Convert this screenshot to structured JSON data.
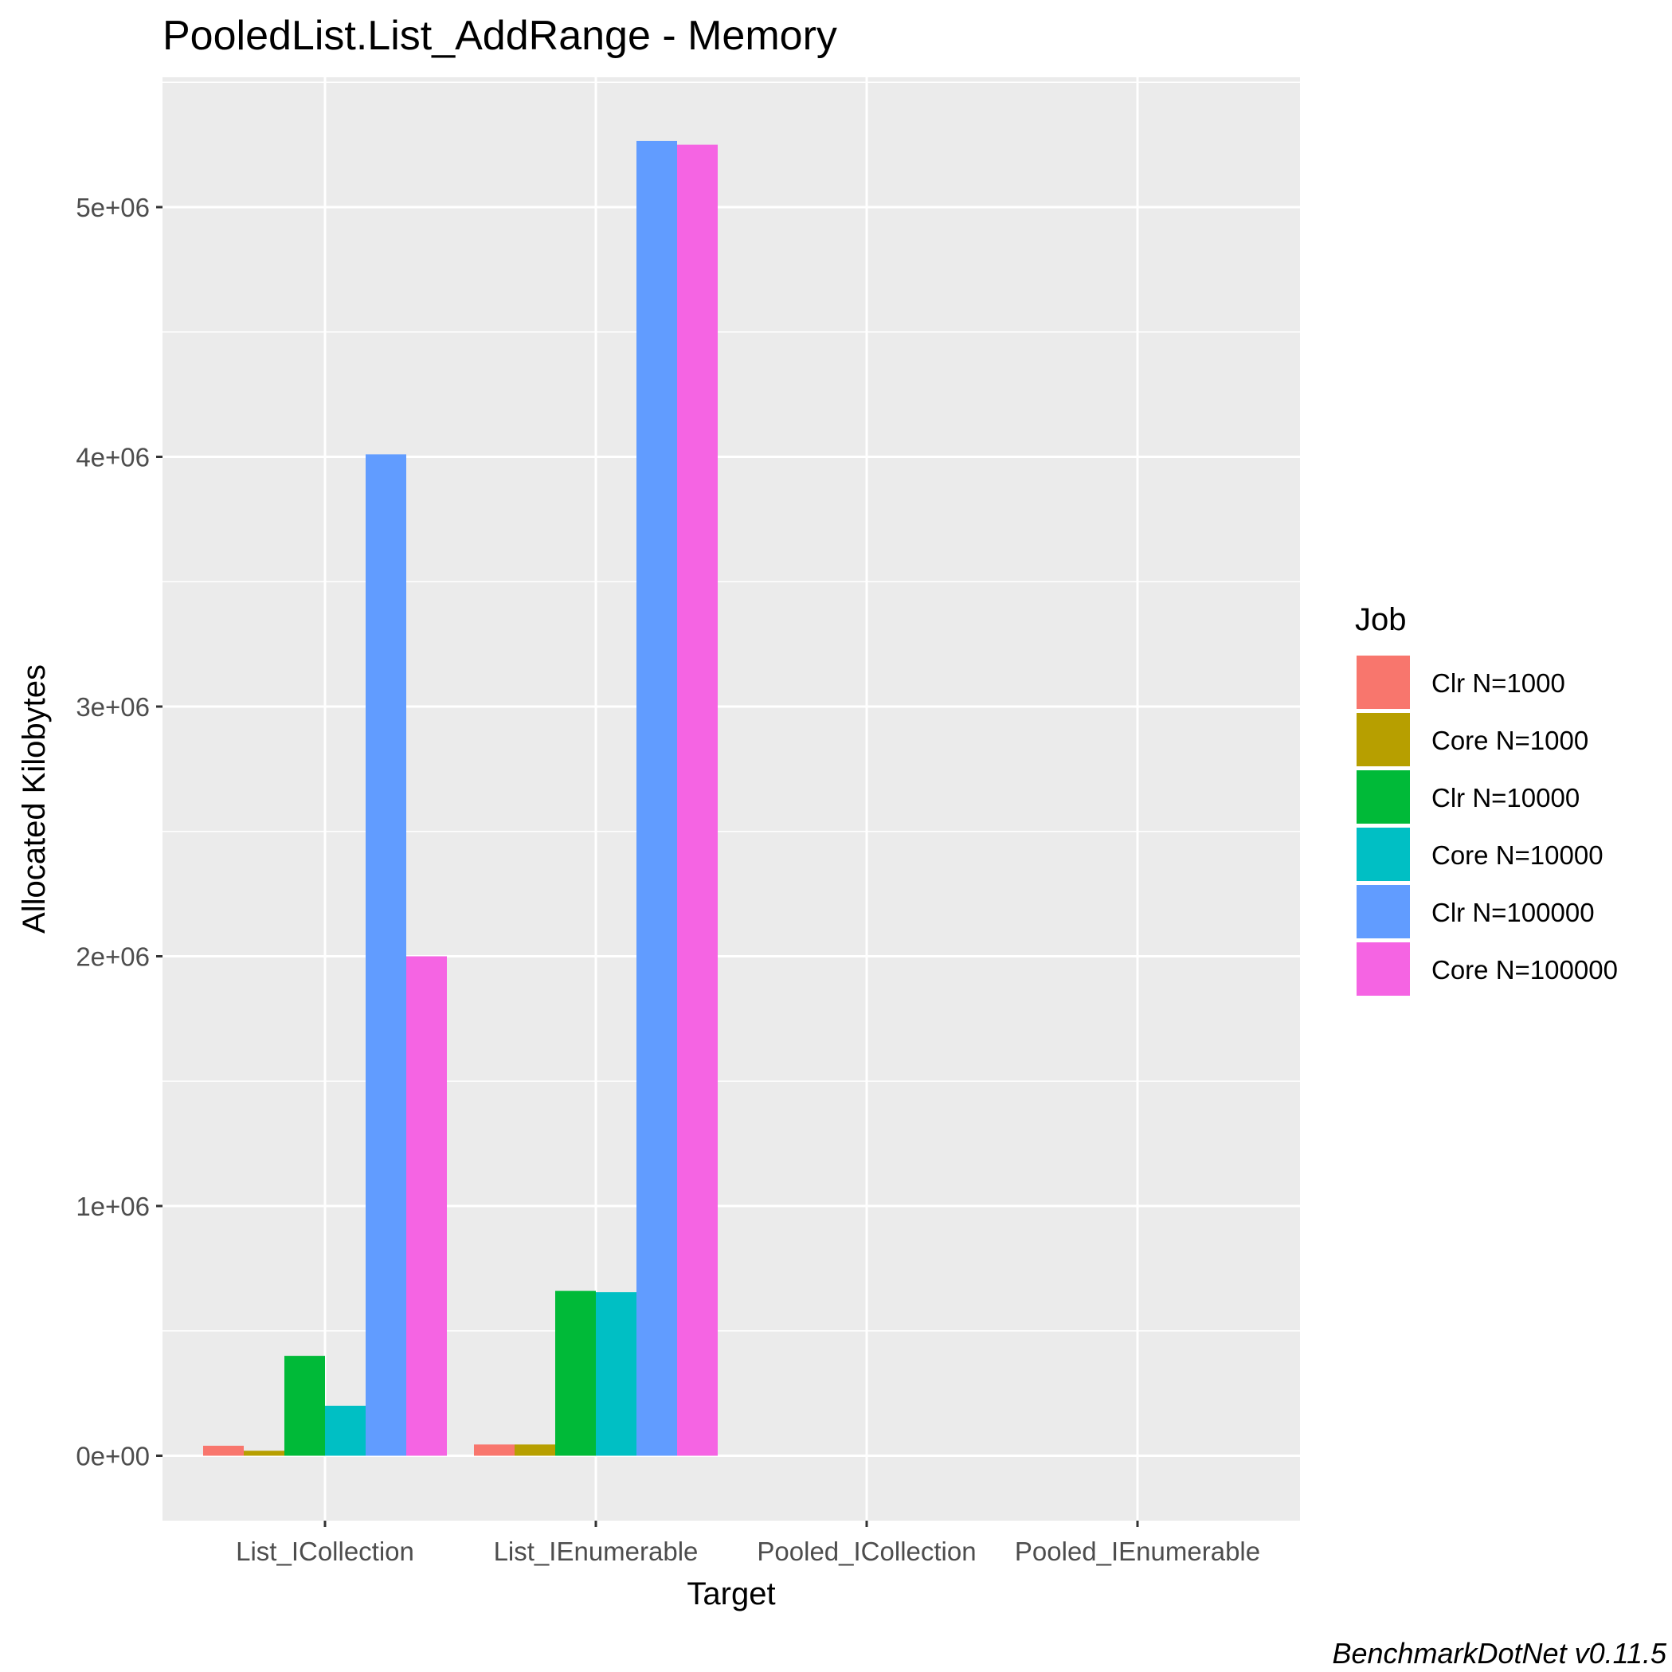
{
  "chart_data": {
    "type": "bar",
    "title": "PooledList.List_AddRange - Memory",
    "xlabel": "Target",
    "ylabel": "Allocated  Kilobytes",
    "caption": "BenchmarkDotNet v0.11.5",
    "categories": [
      "List_ICollection",
      "List_IEnumerable",
      "Pooled_ICollection",
      "Pooled_IEnumerable"
    ],
    "y_ticks": [
      {
        "value": 0,
        "label": "0e+00"
      },
      {
        "value": 1000000,
        "label": "1e+06"
      },
      {
        "value": 2000000,
        "label": "2e+06"
      },
      {
        "value": 3000000,
        "label": "3e+06"
      },
      {
        "value": 4000000,
        "label": "4e+06"
      },
      {
        "value": 5000000,
        "label": "5e+06"
      }
    ],
    "ylim": [
      -260000,
      5520000
    ],
    "grid": true,
    "legend": {
      "title": "Job",
      "position": "right"
    },
    "series": [
      {
        "name": "Clr N=1000",
        "color": "#F8766D",
        "values": [
          40000,
          45000,
          0,
          0
        ]
      },
      {
        "name": "Core N=1000",
        "color": "#B79F00",
        "values": [
          20000,
          45000,
          0,
          0
        ]
      },
      {
        "name": "Clr N=10000",
        "color": "#00BA38",
        "values": [
          400000,
          660000,
          0,
          0
        ]
      },
      {
        "name": "Core N=10000",
        "color": "#00BFC4",
        "values": [
          200000,
          655000,
          0,
          0
        ]
      },
      {
        "name": "Clr N=100000",
        "color": "#619CFF",
        "values": [
          4010000,
          5265000,
          0,
          0
        ]
      },
      {
        "name": "Core N=100000",
        "color": "#F564E3",
        "values": [
          2000000,
          5250000,
          0,
          0
        ]
      }
    ]
  }
}
